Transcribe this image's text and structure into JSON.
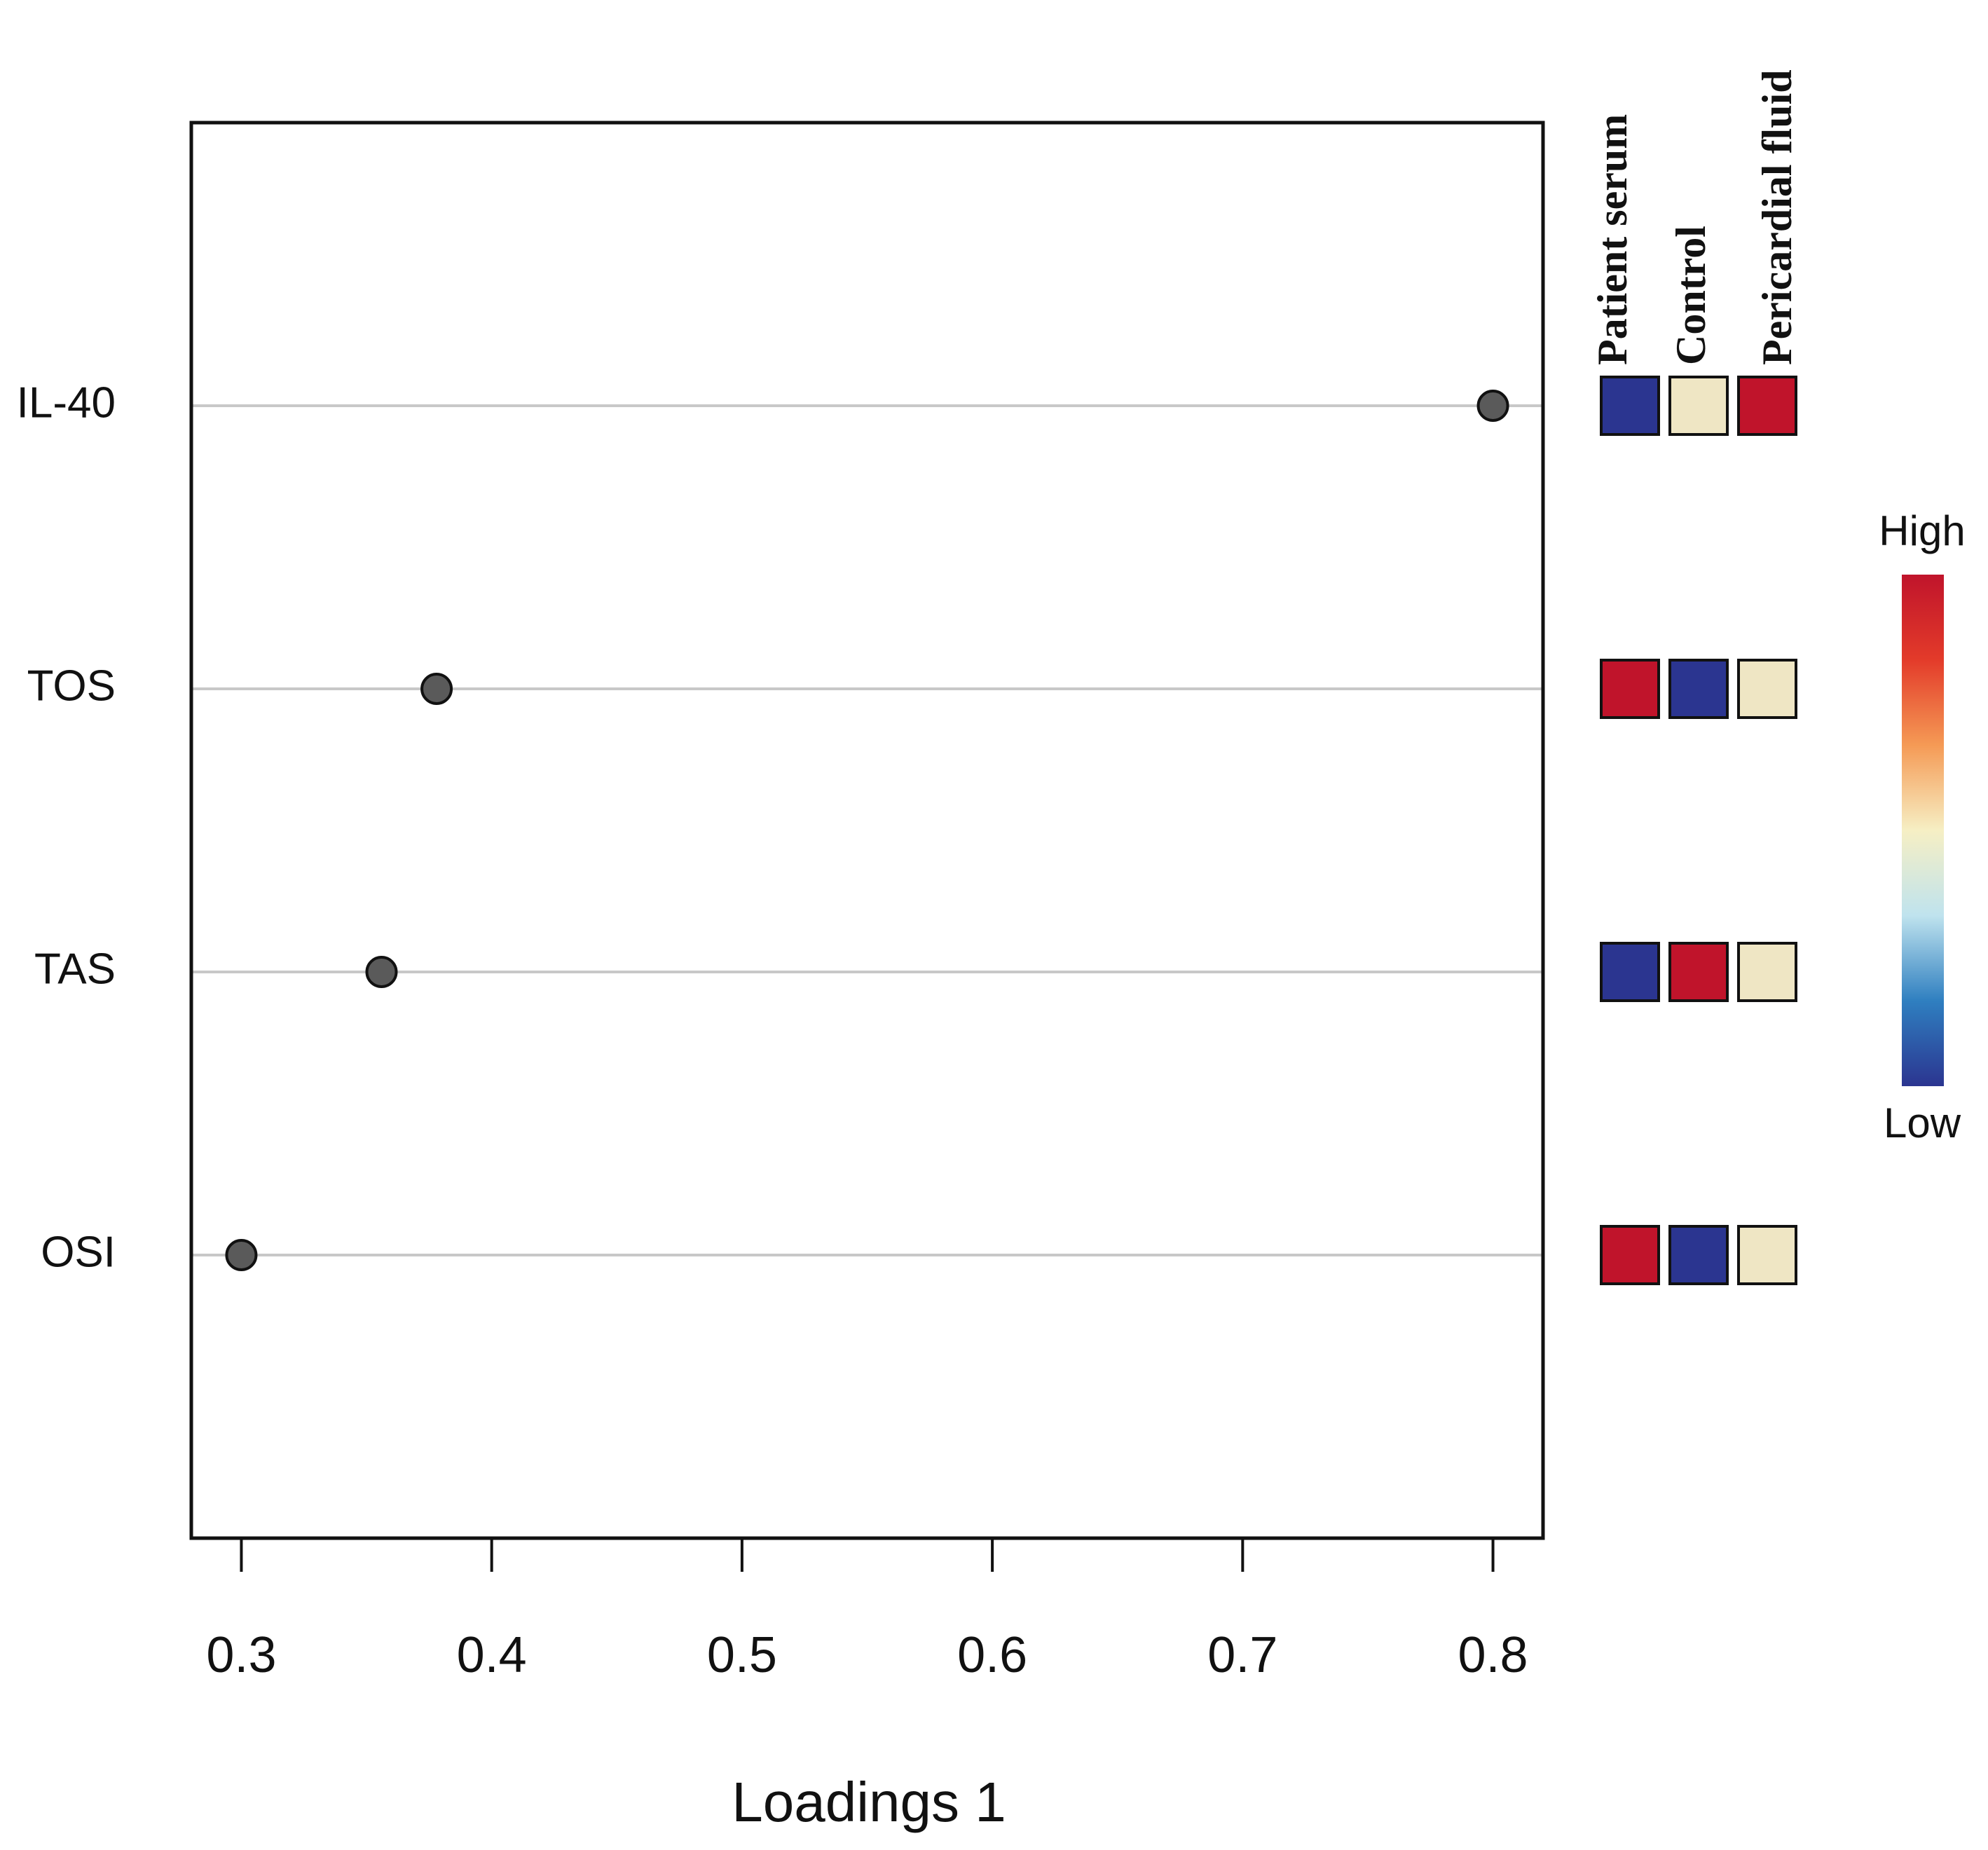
{
  "chart_data": {
    "type": "dot",
    "xlabel": "Loadings 1",
    "categories": [
      "IL-40",
      "TOS",
      "TAS",
      "OSI"
    ],
    "values": [
      0.8,
      0.378,
      0.356,
      0.3
    ],
    "color": "#5a5a5a",
    "xlim": [
      0.28,
      0.82
    ],
    "xticks": [
      0.3,
      0.4,
      0.5,
      0.6,
      0.7,
      0.8
    ],
    "heatmap": {
      "columns": [
        "Patient serum",
        "Control",
        "Pericardial fluid"
      ],
      "rows": [
        [
          "#2b3590",
          "#efe6c4",
          "#c0142b"
        ],
        [
          "#c0142b",
          "#2b3590",
          "#efe6c4"
        ],
        [
          "#2b3590",
          "#c0142b",
          "#efe6c4"
        ],
        [
          "#c0142b",
          "#2b3590",
          "#efe6c4"
        ]
      ],
      "scale_high": "High",
      "scale_low": "Low",
      "scale_colors": [
        "#2b3590",
        "#2f7fc0",
        "#bfe3ee",
        "#f6efc4",
        "#f59a55",
        "#e33b2a",
        "#c0142b"
      ]
    }
  }
}
